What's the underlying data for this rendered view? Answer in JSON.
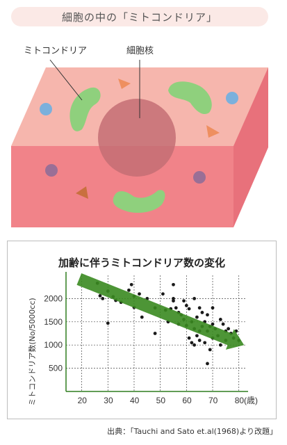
{
  "banner": {
    "title": "細胞の中の「ミトコンドリア」"
  },
  "illustration": {
    "label_mitochondria": "ミトコンドリア",
    "label_nucleus": "細胞核",
    "colors": {
      "cell_top": "#f6b6ad",
      "cell_front": "#f18389",
      "cell_side": "#e8717b",
      "mitochondria": "#8fd07d",
      "nucleus": "#c46e74",
      "triangle": "#ee8f60",
      "dot_blue": "#7bb0dc",
      "dot_purple": "#9a6f96"
    }
  },
  "chart_data": {
    "type": "scatter",
    "title": "加齢に伴うミトコンドリア数の変化",
    "ylabel": "ミトコンドリア数(No/5000cc)",
    "xlabel": "",
    "x_ticks": [
      "20",
      "30",
      "40",
      "50",
      "60",
      "70",
      "80(歳)"
    ],
    "y_ticks": [
      "2000",
      "1500",
      "1000",
      "500"
    ],
    "xlim": [
      14,
      83
    ],
    "ylim": [
      0,
      2500
    ],
    "grid": true,
    "trend_arrow": {
      "from": [
        19,
        2420
      ],
      "to": [
        82,
        1000
      ],
      "color": "#3a8a20"
    },
    "points": [
      [
        26,
        2330
      ],
      [
        27,
        2060
      ],
      [
        28,
        2000
      ],
      [
        30,
        2160
      ],
      [
        30,
        1470
      ],
      [
        32,
        2040
      ],
      [
        33,
        1960
      ],
      [
        35,
        1920
      ],
      [
        38,
        2180
      ],
      [
        39,
        2300
      ],
      [
        40,
        2050
      ],
      [
        40,
        1810
      ],
      [
        42,
        2100
      ],
      [
        43,
        1600
      ],
      [
        45,
        2000
      ],
      [
        48,
        1800
      ],
      [
        48,
        1250
      ],
      [
        51,
        2100
      ],
      [
        52,
        1750
      ],
      [
        53,
        1500
      ],
      [
        54,
        1780
      ],
      [
        55,
        2300
      ],
      [
        55,
        2000
      ],
      [
        55,
        1950
      ],
      [
        56,
        1800
      ],
      [
        57,
        1700
      ],
      [
        57,
        1450
      ],
      [
        58,
        1650
      ],
      [
        59,
        1950
      ],
      [
        59,
        1550
      ],
      [
        60,
        1850
      ],
      [
        60,
        1420
      ],
      [
        61,
        1780
      ],
      [
        61,
        1150
      ],
      [
        62,
        1500
      ],
      [
        62,
        1050
      ],
      [
        63,
        2000
      ],
      [
        63,
        1350
      ],
      [
        63,
        1000
      ],
      [
        64,
        1600
      ],
      [
        64,
        1200
      ],
      [
        65,
        1800
      ],
      [
        65,
        1300
      ],
      [
        65,
        1100
      ],
      [
        66,
        1700
      ],
      [
        66,
        1400
      ],
      [
        67,
        1500
      ],
      [
        67,
        1050
      ],
      [
        68,
        1650
      ],
      [
        68,
        1300
      ],
      [
        68,
        600
      ],
      [
        69,
        1400
      ],
      [
        69,
        900
      ],
      [
        70,
        1800
      ],
      [
        70,
        1450
      ],
      [
        70,
        1150
      ],
      [
        71,
        1350
      ],
      [
        72,
        1200
      ],
      [
        73,
        1550
      ],
      [
        73,
        1000
      ],
      [
        74,
        1450
      ],
      [
        75,
        1300
      ],
      [
        75,
        1100
      ],
      [
        76,
        1350
      ],
      [
        77,
        1250
      ],
      [
        78,
        1150
      ],
      [
        79,
        1300
      ],
      [
        80,
        1100
      ]
    ]
  },
  "source": {
    "text": "出典：「Tauchi and Sato et.al(1968)より改題」"
  }
}
